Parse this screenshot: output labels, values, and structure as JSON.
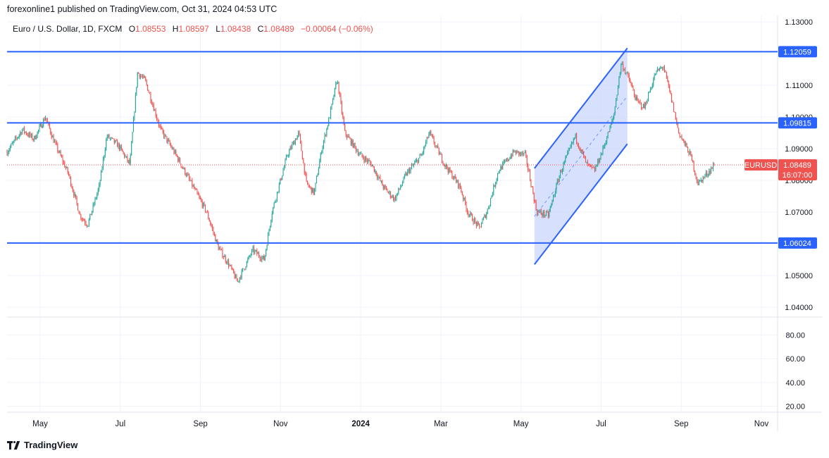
{
  "header": {
    "published_text": "forexonline1 published on TradingView.com, Oct 31, 2024 04:53 UTC"
  },
  "legend": {
    "symbol_text": "Euro / U.S. Dollar, 1D, FXCM",
    "open_label": "O",
    "open": "1.08553",
    "high_label": "H",
    "high": "1.08597",
    "low_label": "L",
    "low": "1.08438",
    "close_label": "C",
    "close": "1.08489",
    "change": "−0.00064 (−0.06%)"
  },
  "footer": {
    "brand": "TradingView"
  },
  "colors": {
    "up": "#26a69a",
    "down": "#ef5350",
    "line": "#2962ff",
    "channel_fill": "#c9d6fb",
    "grid": "#f0f3fa"
  },
  "chart_data": {
    "type": "candlestick",
    "ylim": [
      1.04,
      1.13
    ],
    "price_ticks": [
      "1.13000",
      "1.11000",
      "1.10000",
      "1.09000",
      "1.08000",
      "1.07000",
      "1.05000",
      "1.04000"
    ],
    "x_labels": [
      {
        "label": "May",
        "strong": false
      },
      {
        "label": "Jul",
        "strong": false
      },
      {
        "label": "Sep",
        "strong": false
      },
      {
        "label": "Nov",
        "strong": false
      },
      {
        "label": "2024",
        "strong": true
      },
      {
        "label": "Mar",
        "strong": false
      },
      {
        "label": "May",
        "strong": false
      },
      {
        "label": "Jul",
        "strong": false
      },
      {
        "label": "Sep",
        "strong": false
      },
      {
        "label": "Nov",
        "strong": false
      }
    ],
    "horizontal_levels": [
      {
        "value": 1.12059,
        "label": "1.12059"
      },
      {
        "value": 1.09815,
        "label": "1.09815"
      },
      {
        "value": 1.06024,
        "label": "1.06024"
      }
    ],
    "current_price": {
      "value": 1.08489,
      "label": "1.08489",
      "symbol": "EURUSD",
      "countdown": "16:07:00"
    },
    "channel": {
      "upper": [
        [
          0.687,
          1.0838
        ],
        [
          0.808,
          1.1217
        ]
      ],
      "lower": [
        [
          0.687,
          1.0535
        ],
        [
          0.808,
          1.0915
        ]
      ]
    },
    "path": [
      [
        0.0,
        1.089
      ],
      [
        0.02,
        1.096
      ],
      [
        0.035,
        1.093
      ],
      [
        0.05,
        1.1
      ],
      [
        0.06,
        1.093
      ],
      [
        0.08,
        1.082
      ],
      [
        0.095,
        1.069
      ],
      [
        0.105,
        1.066
      ],
      [
        0.12,
        1.078
      ],
      [
        0.13,
        1.094
      ],
      [
        0.145,
        1.091
      ],
      [
        0.16,
        1.085
      ],
      [
        0.17,
        1.114
      ],
      [
        0.18,
        1.1115
      ],
      [
        0.2,
        1.096
      ],
      [
        0.22,
        1.088
      ],
      [
        0.24,
        1.079
      ],
      [
        0.26,
        1.07
      ],
      [
        0.275,
        1.059
      ],
      [
        0.29,
        1.053
      ],
      [
        0.3,
        1.048
      ],
      [
        0.32,
        1.058
      ],
      [
        0.335,
        1.055
      ],
      [
        0.345,
        1.07
      ],
      [
        0.365,
        1.088
      ],
      [
        0.38,
        1.095
      ],
      [
        0.39,
        1.079
      ],
      [
        0.4,
        1.076
      ],
      [
        0.41,
        1.09
      ],
      [
        0.42,
        1.1
      ],
      [
        0.43,
        1.112
      ],
      [
        0.44,
        1.095
      ],
      [
        0.46,
        1.088
      ],
      [
        0.475,
        1.085
      ],
      [
        0.49,
        1.078
      ],
      [
        0.505,
        1.074
      ],
      [
        0.52,
        1.082
      ],
      [
        0.54,
        1.088
      ],
      [
        0.55,
        1.095
      ],
      [
        0.57,
        1.085
      ],
      [
        0.59,
        1.078
      ],
      [
        0.6,
        1.07
      ],
      [
        0.615,
        1.065
      ],
      [
        0.625,
        1.07
      ],
      [
        0.64,
        1.083
      ],
      [
        0.66,
        1.089
      ],
      [
        0.675,
        1.088
      ],
      [
        0.69,
        1.07
      ],
      [
        0.705,
        1.069
      ],
      [
        0.72,
        1.082
      ],
      [
        0.74,
        1.094
      ],
      [
        0.755,
        1.085
      ],
      [
        0.765,
        1.083
      ],
      [
        0.775,
        1.089
      ],
      [
        0.79,
        1.1
      ],
      [
        0.8,
        1.117
      ],
      [
        0.81,
        1.112
      ],
      [
        0.82,
        1.105
      ],
      [
        0.83,
        1.103
      ],
      [
        0.845,
        1.114
      ],
      [
        0.855,
        1.116
      ],
      [
        0.865,
        1.106
      ],
      [
        0.875,
        1.095
      ],
      [
        0.89,
        1.088
      ],
      [
        0.9,
        1.079
      ],
      [
        0.915,
        1.083
      ],
      [
        0.921,
        1.0849
      ]
    ],
    "volatility": 0.0009,
    "bar_count": 700,
    "oscillator": {
      "ticks": [
        "80.00",
        "60.00",
        "40.00",
        "20.00"
      ],
      "ylim": [
        15,
        95
      ]
    }
  }
}
